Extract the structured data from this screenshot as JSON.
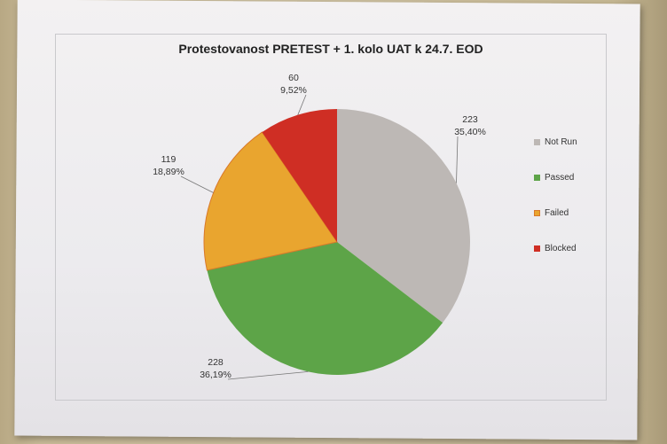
{
  "chart_data": {
    "type": "pie",
    "title": "Protestovanost PRETEST + 1. kolo UAT k 24.7. EOD",
    "categories": [
      "Not Run",
      "Passed",
      "Failed",
      "Blocked"
    ],
    "values": [
      223,
      228,
      119,
      60
    ],
    "percent_labels": [
      "35,40%",
      "36,19%",
      "18,89%",
      "9,52%"
    ],
    "colors": [
      "#bdb8b5",
      "#5da448",
      "#e9a52f",
      "#cf2e24"
    ],
    "legend_position": "right"
  }
}
